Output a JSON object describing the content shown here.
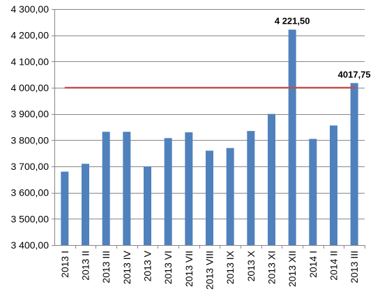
{
  "chart_data": {
    "type": "bar",
    "title": "",
    "xlabel": "",
    "ylabel": "",
    "categories": [
      "2013 I",
      "2013 II",
      "2013 III",
      "2013 IV",
      "2013 V",
      "2013 VI",
      "2013 VII",
      "2013 VIII",
      "2013 IX",
      "2013 X",
      "2013 XI",
      "2013 XII",
      "2014 I",
      "2014 II",
      "2013 III"
    ],
    "values": [
      3680,
      3710,
      3832,
      3832,
      3700,
      3808,
      3830,
      3760,
      3770,
      3835,
      3900,
      4221.5,
      3805,
      3856,
      4017.75
    ],
    "ylim": [
      3400,
      4300
    ],
    "yticks": [
      3400,
      3500,
      3600,
      3700,
      3800,
      3900,
      4000,
      4100,
      4200,
      4300
    ],
    "ytick_labels": [
      "3 400,00",
      "3 500,00",
      "3 600,00",
      "3 700,00",
      "3 800,00",
      "3 900,00",
      "4 000,00",
      "4 100,00",
      "4 200,00",
      "4 300,00"
    ],
    "grid": true,
    "legend": "none",
    "bar_color": "#4F81BD",
    "reference_line": {
      "value": 4000,
      "color": "#C0504D"
    },
    "data_labels": [
      {
        "index": 11,
        "text": "4 221,50"
      },
      {
        "index": 14,
        "text": "4017,75"
      }
    ]
  }
}
